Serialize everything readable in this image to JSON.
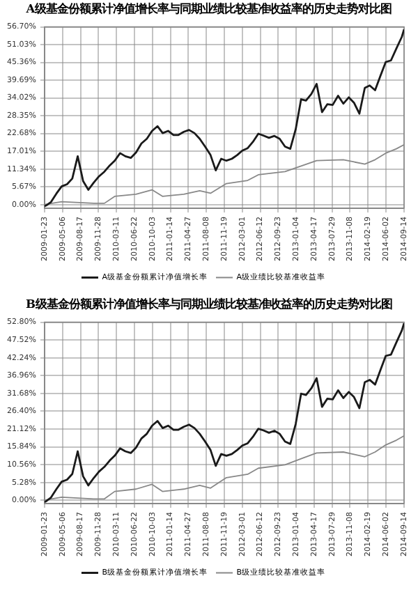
{
  "chart_data": [
    {
      "type": "line",
      "title": "A级基金份额累计净值增长率与同期业绩比较基准收益率的历史走势对比图",
      "xlim": [
        "2009-01-23",
        "2014-09-14"
      ],
      "xticks": [
        "2009-01-23",
        "2009-05-06",
        "2009-08-17",
        "2009-11-28",
        "2010-03-11",
        "2010-06-22",
        "2010-10-03",
        "2011-01-14",
        "2011-04-27",
        "2011-08-08",
        "2011-11-19",
        "2012-03-01",
        "2012-06-12",
        "2012-09-23",
        "2013-01-04",
        "2013-04-17",
        "2013-07-29",
        "2013-11-08",
        "2014-02-19",
        "2014-06-02",
        "2014-09-14"
      ],
      "ylim": [
        -1.2,
        56.7
      ],
      "yticks": [
        {
          "value": 0,
          "label": "0.00%"
        },
        {
          "value": 5.67,
          "label": "5.67%"
        },
        {
          "value": 11.34,
          "label": "11.34%"
        },
        {
          "value": 17.01,
          "label": "17.01%"
        },
        {
          "value": 22.68,
          "label": "22.68%"
        },
        {
          "value": 28.35,
          "label": "28.35%"
        },
        {
          "value": 34.02,
          "label": "34.02%"
        },
        {
          "value": 39.69,
          "label": "39.69%"
        },
        {
          "value": 45.36,
          "label": "45.36%"
        },
        {
          "value": 51.03,
          "label": "51.03%"
        },
        {
          "value": 56.7,
          "label": "56.70%"
        }
      ],
      "grid": true,
      "legend": "bottom",
      "series": [
        {
          "name": "A级基金份额累计净值增长率",
          "color": "#1a1a1a",
          "x": [
            "2009-01-23",
            "2009-02",
            "2009-03",
            "2009-04",
            "2009-05",
            "2009-06",
            "2009-07",
            "2009-08",
            "2009-09",
            "2009-10",
            "2009-11",
            "2009-12",
            "2010-01",
            "2010-02",
            "2010-03",
            "2010-04",
            "2010-05",
            "2010-06",
            "2010-07",
            "2010-08",
            "2010-09",
            "2010-10",
            "2010-11",
            "2010-12",
            "2011-01",
            "2011-02",
            "2011-03",
            "2011-04",
            "2011-05",
            "2011-06",
            "2011-07",
            "2011-08",
            "2011-09",
            "2011-10",
            "2011-11",
            "2011-12",
            "2012-01",
            "2012-02",
            "2012-03",
            "2012-04",
            "2012-05",
            "2012-06",
            "2012-07",
            "2012-08",
            "2012-09",
            "2012-10",
            "2012-11",
            "2012-12",
            "2013-01",
            "2013-02",
            "2013-03",
            "2013-04",
            "2013-05",
            "2013-06",
            "2013-07",
            "2013-08",
            "2013-09",
            "2013-10",
            "2013-11",
            "2013-12",
            "2014-01",
            "2014-02",
            "2014-03",
            "2014-04",
            "2014-05",
            "2014-06",
            "2014-07",
            "2014-08",
            "2014-09",
            "2014-09-14"
          ],
          "values": [
            -0.5,
            -0.3,
            0.8,
            3.5,
            5.8,
            6.5,
            8.3,
            15.4,
            7.5,
            4.7,
            7.0,
            9.0,
            10.5,
            12.5,
            14.0,
            16.4,
            15.4,
            14.9,
            16.6,
            19.5,
            21.0,
            23.5,
            25.0,
            22.8,
            23.5,
            22.2,
            22.2,
            23.2,
            23.8,
            22.8,
            21.0,
            18.5,
            15.8,
            10.9,
            14.6,
            14.0,
            14.6,
            15.8,
            17.2,
            18.0,
            20.0,
            22.6,
            22.0,
            21.3,
            21.9,
            21.0,
            18.5,
            17.8,
            24.0,
            33.6,
            33.2,
            35.3,
            38.5,
            29.5,
            32.0,
            31.8,
            34.7,
            32.2,
            34.2,
            32.5,
            29.0,
            37.2,
            38.0,
            36.5,
            41.0,
            45.5,
            46.0,
            49.8,
            53.5,
            55.9
          ]
        },
        {
          "name": "A级业绩比较基准收益率",
          "color": "#888888",
          "x": [
            "2009-01-23",
            "2009-05",
            "2009-11",
            "2010-01",
            "2010-03",
            "2010-07",
            "2010-10",
            "2010-12",
            "2011-04",
            "2011-07",
            "2011-09",
            "2011-12",
            "2012-04",
            "2012-06",
            "2012-11",
            "2013-02",
            "2013-05",
            "2013-10",
            "2013-12",
            "2014-02",
            "2014-04",
            "2014-06",
            "2014-08",
            "2014-09-14"
          ],
          "values": [
            0.0,
            0.9,
            0.4,
            0.4,
            2.6,
            3.3,
            4.7,
            2.6,
            3.3,
            4.4,
            3.6,
            6.7,
            7.7,
            9.5,
            10.5,
            12.3,
            14.0,
            14.3,
            13.6,
            12.9,
            14.3,
            16.4,
            17.8,
            19.1
          ]
        }
      ]
    },
    {
      "type": "line",
      "title": "B级基金份额累计净值增长率与同期业绩比较基准收益率的历史走势对比图",
      "xlim": [
        "2009-01-23",
        "2014-09-14"
      ],
      "xticks": [
        "2009-01-23",
        "2009-05-06",
        "2009-08-17",
        "2009-11-28",
        "2010-03-11",
        "2010-06-22",
        "2010-10-03",
        "2011-01-14",
        "2011-04-27",
        "2011-08-08",
        "2011-11-19",
        "2012-03-01",
        "2012-06-12",
        "2012-09-23",
        "2013-01-04",
        "2013-04-17",
        "2013-07-29",
        "2013-11-08",
        "2014-02-19",
        "2014-06-02",
        "2014-09-14"
      ],
      "ylim": [
        -1.0,
        52.8
      ],
      "yticks": [
        {
          "value": 0,
          "label": "0.00%"
        },
        {
          "value": 5.28,
          "label": "5.28%"
        },
        {
          "value": 10.56,
          "label": "10.56%"
        },
        {
          "value": 15.84,
          "label": "15.84%"
        },
        {
          "value": 21.12,
          "label": "21.12%"
        },
        {
          "value": 26.4,
          "label": "26.40%"
        },
        {
          "value": 31.68,
          "label": "31.68%"
        },
        {
          "value": 36.96,
          "label": "36.96%"
        },
        {
          "value": 42.24,
          "label": "42.24%"
        },
        {
          "value": 47.52,
          "label": "47.52%"
        },
        {
          "value": 52.8,
          "label": "52.80%"
        }
      ],
      "grid": true,
      "legend": "bottom",
      "series": [
        {
          "name": "B级基金份额累计净值增长率",
          "color": "#1a1a1a",
          "x": [
            "2009-01-23",
            "2009-02",
            "2009-03",
            "2009-04",
            "2009-05",
            "2009-06",
            "2009-07",
            "2009-08",
            "2009-09",
            "2009-10",
            "2009-11",
            "2009-12",
            "2010-01",
            "2010-02",
            "2010-03",
            "2010-04",
            "2010-05",
            "2010-06",
            "2010-07",
            "2010-08",
            "2010-09",
            "2010-10",
            "2010-11",
            "2010-12",
            "2011-01",
            "2011-02",
            "2011-03",
            "2011-04",
            "2011-05",
            "2011-06",
            "2011-07",
            "2011-08",
            "2011-09",
            "2011-10",
            "2011-11",
            "2011-12",
            "2012-01",
            "2012-02",
            "2012-03",
            "2012-04",
            "2012-05",
            "2012-06",
            "2012-07",
            "2012-08",
            "2012-09",
            "2012-10",
            "2012-11",
            "2012-12",
            "2013-01",
            "2013-02",
            "2013-03",
            "2013-04",
            "2013-05",
            "2013-06",
            "2013-07",
            "2013-08",
            "2013-09",
            "2013-10",
            "2013-11",
            "2013-12",
            "2014-01",
            "2014-02",
            "2014-03",
            "2014-04",
            "2014-05",
            "2014-06",
            "2014-07",
            "2014-08",
            "2014-09",
            "2014-09-14"
          ],
          "values": [
            -0.5,
            -0.3,
            0.8,
            3.3,
            5.5,
            6.1,
            7.8,
            14.5,
            7.1,
            4.4,
            6.6,
            8.5,
            9.9,
            11.8,
            13.2,
            15.4,
            14.5,
            14.0,
            15.6,
            18.3,
            19.7,
            22.1,
            23.5,
            21.4,
            22.1,
            20.9,
            20.9,
            21.8,
            22.4,
            21.4,
            19.7,
            17.4,
            14.9,
            10.2,
            13.7,
            13.2,
            13.7,
            14.9,
            16.2,
            16.9,
            18.8,
            21.2,
            20.7,
            20.0,
            20.6,
            19.7,
            17.4,
            16.7,
            22.6,
            31.6,
            31.2,
            33.2,
            36.2,
            27.7,
            30.1,
            29.9,
            32.6,
            30.3,
            32.1,
            30.6,
            27.3,
            35.0,
            35.7,
            34.3,
            38.5,
            42.8,
            43.2,
            46.8,
            50.3,
            52.5
          ]
        },
        {
          "name": "B级业绩比较基准收益率",
          "color": "#888888",
          "x": [
            "2009-01-23",
            "2009-05",
            "2009-11",
            "2010-01",
            "2010-03",
            "2010-07",
            "2010-10",
            "2010-12",
            "2011-04",
            "2011-07",
            "2011-09",
            "2011-12",
            "2012-04",
            "2012-06",
            "2012-11",
            "2013-02",
            "2013-05",
            "2013-10",
            "2013-12",
            "2014-02",
            "2014-04",
            "2014-06",
            "2014-08",
            "2014-09-14"
          ],
          "values": [
            0.0,
            0.9,
            0.4,
            0.4,
            2.6,
            3.3,
            4.7,
            2.6,
            3.3,
            4.4,
            3.6,
            6.7,
            7.7,
            9.5,
            10.5,
            12.3,
            14.0,
            14.3,
            13.6,
            12.9,
            14.3,
            16.4,
            17.8,
            19.1
          ]
        }
      ]
    }
  ]
}
